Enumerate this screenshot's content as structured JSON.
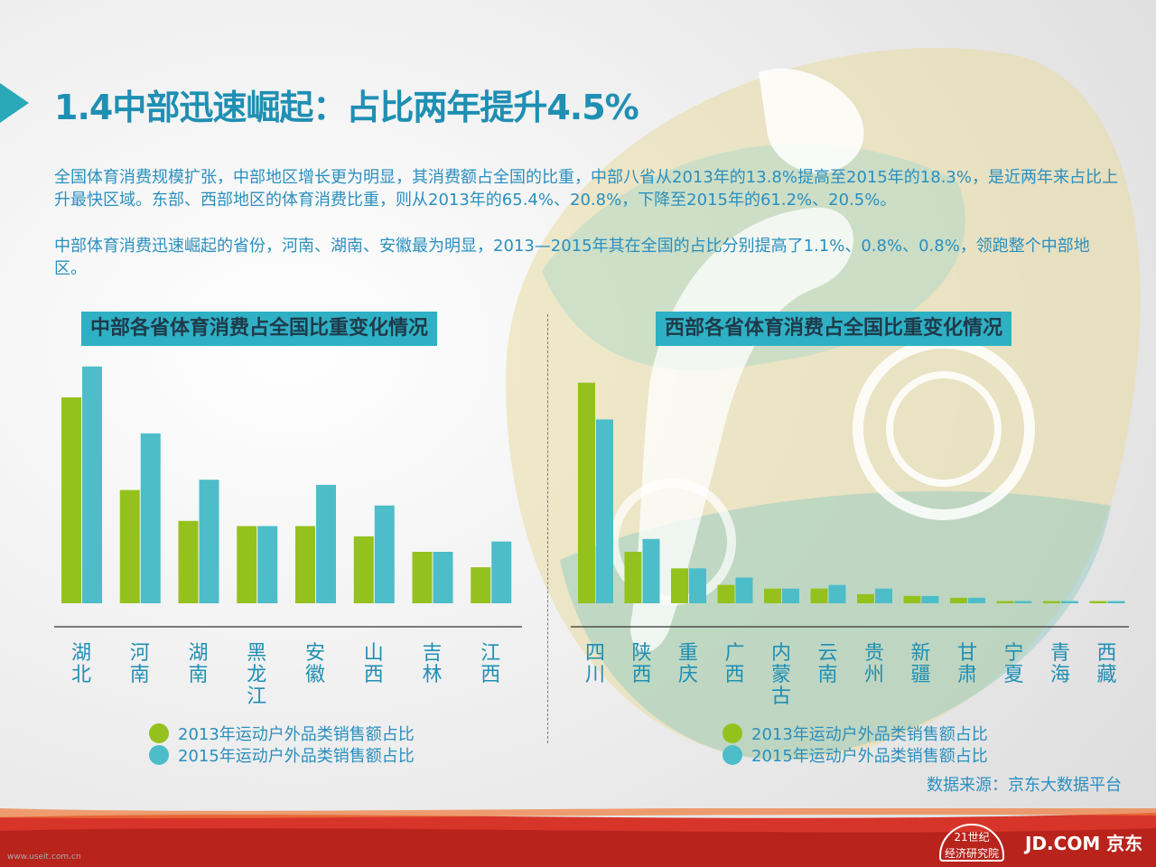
{
  "title": "1.4中部迅速崛起：占比两年提升4.5%",
  "paragraph1": "全国体育消费规模扩张，中部地区增长更为明显，其消费额占全国的比重，中部八省从2013年的13.8%提高至2015年的18.3%，是近两年来占比上升最快区域。东部、西部地区的体育消费比重，则从2013年的65.4%、20.8%，下降至2015年的61.2%、20.5%。",
  "paragraph2": "中部体育消费迅速崛起的省份，河南、湖南、安徽最为明显，2013—2015年其在全国的占比分别提高了1.1%、0.8%、0.8%，领跑整个中部地区。",
  "source": "数据来源：京东大数据平台",
  "watermark": "www.useit.com.cn",
  "logos": {
    "jd": "JD.COM 京东",
    "institute_line1": "21世纪",
    "institute_line2": "经济研究院"
  },
  "colors": {
    "series2013": "#95c11f",
    "series2015": "#4dbdc9",
    "accent": "#2aaab9"
  },
  "chart_data": [
    {
      "type": "bar",
      "title": "中部各省体育消费占全国比重变化情况",
      "categories": [
        "湖北",
        "河南",
        "湖南",
        "黑龙江",
        "安徽",
        "山西",
        "吉林",
        "江西"
      ],
      "series": [
        {
          "name": "2013年运动户外品类销售额占比",
          "values": [
            4.0,
            2.2,
            1.6,
            1.5,
            1.5,
            1.3,
            1.0,
            0.7
          ]
        },
        {
          "name": "2015年运动户外品类销售额占比",
          "values": [
            4.6,
            3.3,
            2.4,
            1.5,
            2.3,
            1.9,
            1.0,
            1.2
          ]
        }
      ],
      "ylim": [
        0,
        5
      ],
      "legend_position": "bottom-left",
      "grid": false
    },
    {
      "type": "bar",
      "title": "西部各省体育消费占全国比重变化情况",
      "categories": [
        "四川",
        "陕西",
        "重庆",
        "广西",
        "内蒙古",
        "云南",
        "贵州",
        "新疆",
        "甘肃",
        "宁夏",
        "青海",
        "西藏"
      ],
      "series": [
        {
          "name": "2013年运动户外品类销售额占比",
          "values": [
            6.0,
            1.4,
            0.95,
            0.5,
            0.4,
            0.4,
            0.25,
            0.2,
            0.15,
            0.06,
            0.06,
            0.06
          ]
        },
        {
          "name": "2015年运动户外品类销售额占比",
          "values": [
            5.0,
            1.75,
            0.95,
            0.7,
            0.4,
            0.5,
            0.4,
            0.2,
            0.15,
            0.06,
            0.06,
            0.06
          ]
        }
      ],
      "ylim": [
        0,
        7
      ],
      "legend_position": "bottom-left",
      "grid": false
    }
  ]
}
